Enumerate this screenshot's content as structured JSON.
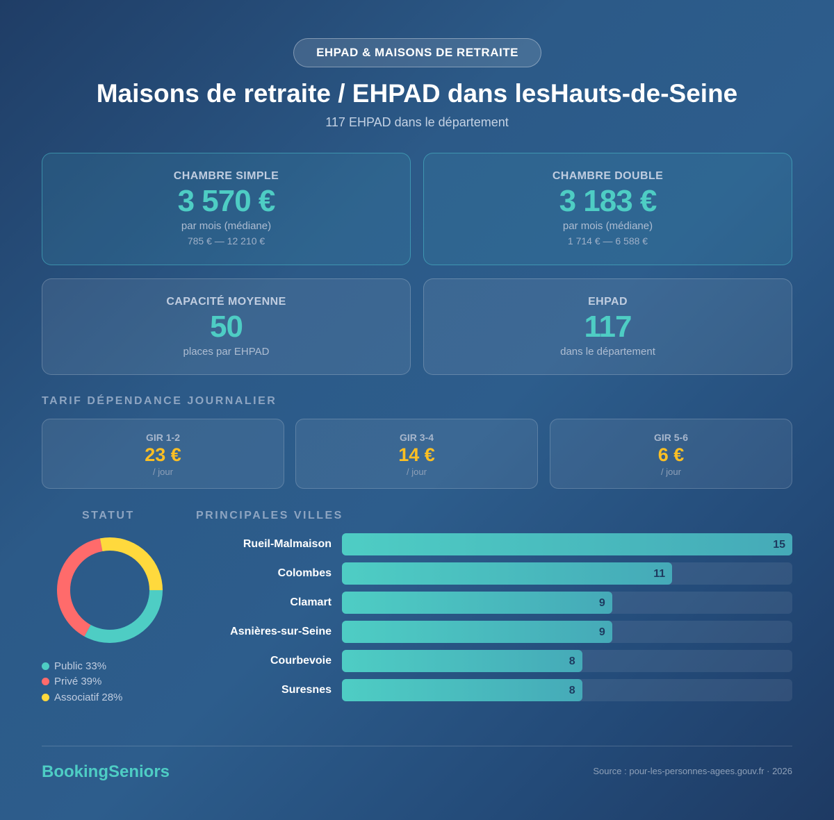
{
  "badge": "EHPAD & MAISONS DE RETRAITE",
  "title": "Maisons de retraite / EHPAD dans lesHauts-de-Seine",
  "subtitle": "117 EHPAD dans le département",
  "cards": [
    {
      "label": "CHAMBRE SIMPLE",
      "value": "3 570 €",
      "sub": "par mois (médiane)",
      "range": "785 € — 12 210 €"
    },
    {
      "label": "CHAMBRE DOUBLE",
      "value": "3 183 €",
      "sub": "par mois (médiane)",
      "range": "1 714 € — 6 588 €"
    },
    {
      "label": "CAPACITÉ MOYENNE",
      "value": "50",
      "sub": "places par EHPAD"
    },
    {
      "label": "EHPAD",
      "value": "117",
      "sub": "dans le département"
    }
  ],
  "tarif_title": "TARIF DÉPENDANCE JOURNALIER",
  "gir": [
    {
      "label": "GIR 1-2",
      "value": "23 €",
      "unit": "/ jour"
    },
    {
      "label": "GIR 3-4",
      "value": "14 €",
      "unit": "/ jour"
    },
    {
      "label": "GIR 5-6",
      "value": "6 €",
      "unit": "/ jour"
    }
  ],
  "chart_data": [
    {
      "type": "pie",
      "title": "STATUT",
      "donut": true,
      "slices": [
        {
          "name": "Public",
          "value": 33,
          "label": "Public 33%",
          "color": "#4ecdc4"
        },
        {
          "name": "Privé",
          "value": 39,
          "label": "Privé 39%",
          "color": "#ff6b6b"
        },
        {
          "name": "Associatif",
          "value": 28,
          "label": "Associatif 28%",
          "color": "#ffd93d"
        }
      ]
    },
    {
      "type": "bar",
      "orientation": "horizontal",
      "title": "PRINCIPALES VILLES",
      "categories": [
        "Rueil-Malmaison",
        "Colombes",
        "Clamart",
        "Asnières-sur-Seine",
        "Courbevoie",
        "Suresnes"
      ],
      "values": [
        15,
        11,
        9,
        9,
        8,
        8
      ],
      "xlim": [
        0,
        15
      ]
    }
  ],
  "footer": {
    "brand": "BookingSeniors",
    "source": "Source : pour-les-personnes-agees.gouv.fr · 2026"
  }
}
